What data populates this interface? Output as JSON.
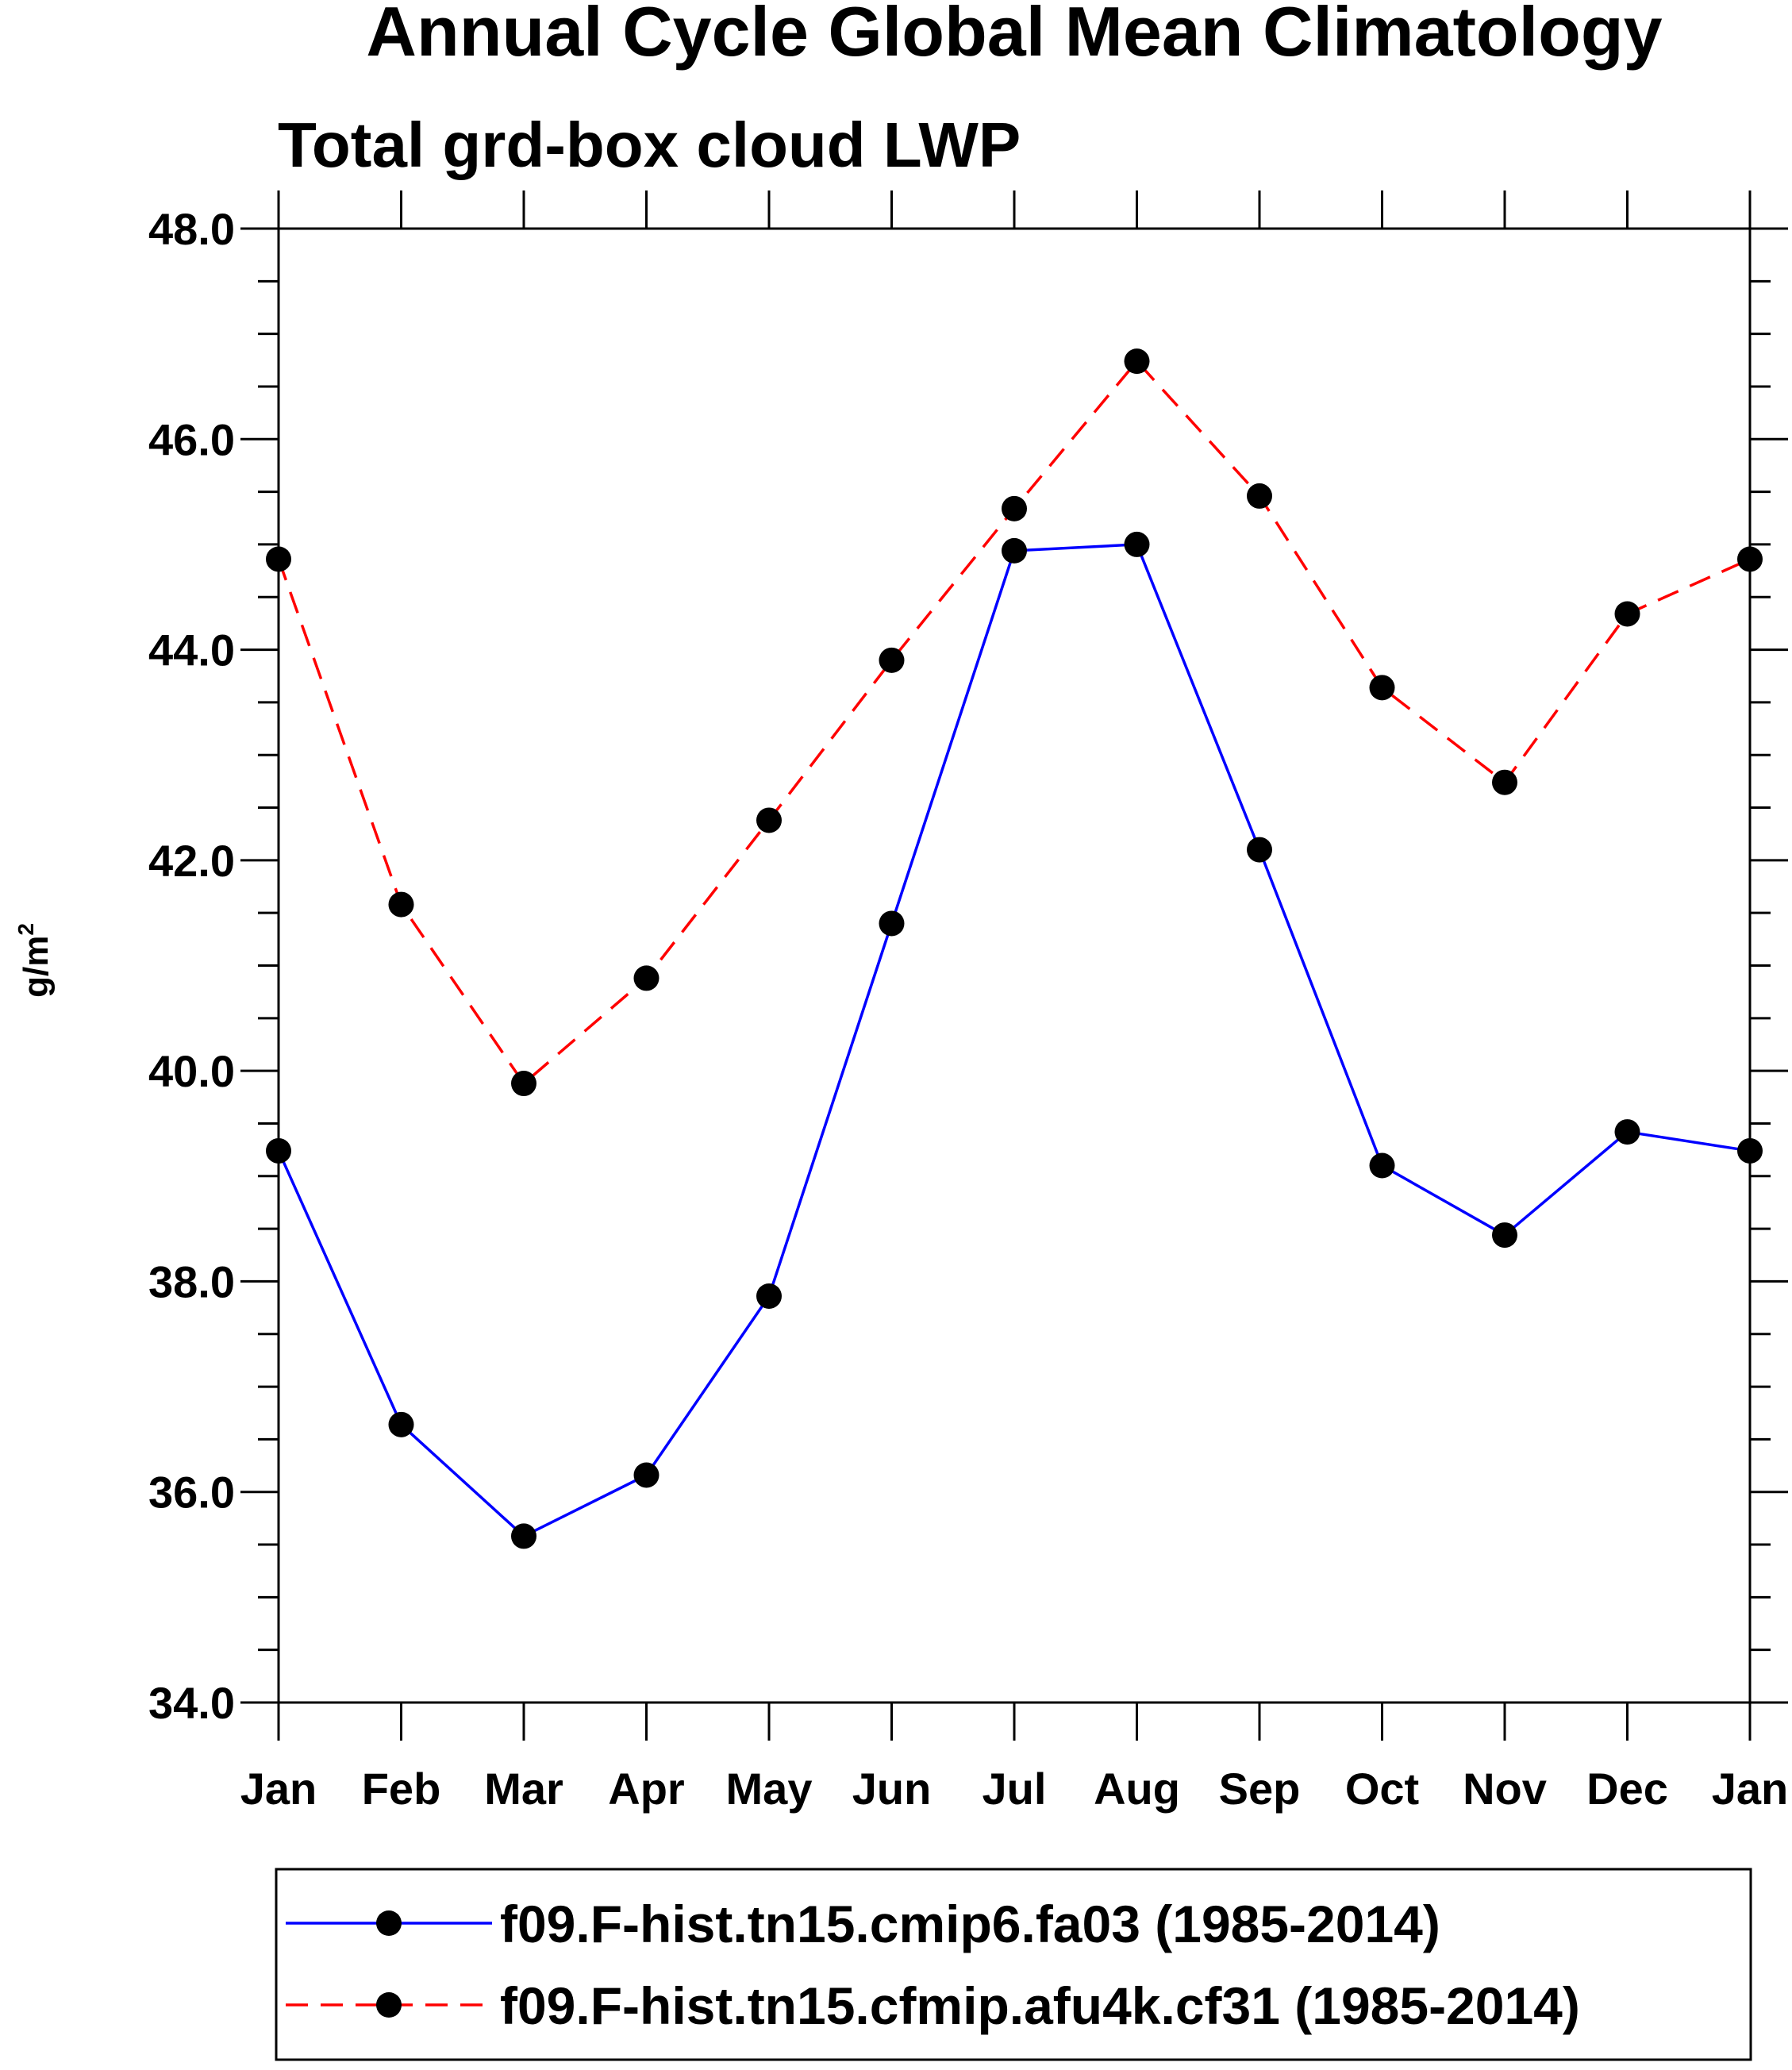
{
  "chart_data": {
    "type": "line",
    "title": "Annual Cycle Global Mean Climatology",
    "subtitle": "Total grd-box cloud LWP",
    "ylabel": "g/m",
    "ylabel_sup": "2",
    "xlabel": "",
    "categories": [
      "Jan",
      "Feb",
      "Mar",
      "Apr",
      "May",
      "Jun",
      "Jul",
      "Aug",
      "Sep",
      "Oct",
      "Nov",
      "Dec",
      "Jan"
    ],
    "ylim": [
      34.0,
      48.0
    ],
    "yticks": [
      "34.0",
      "36.0",
      "38.0",
      "40.0",
      "42.0",
      "44.0",
      "46.0",
      "48.0"
    ],
    "grid": false,
    "legend_position": "bottom",
    "series": [
      {
        "name": "f09.F-hist.tn15.cmip6.fa03 (1985-2014)",
        "color": "#0000ff",
        "style": "solid",
        "values": [
          39.24,
          36.64,
          35.58,
          36.16,
          37.86,
          41.4,
          44.94,
          45.0,
          42.1,
          39.1,
          38.44,
          39.42,
          39.24
        ]
      },
      {
        "name": "f09.F-hist.tn15.cfmip.afu4k.cf31 (1985-2014)",
        "color": "#ff0000",
        "style": "dashed",
        "values": [
          44.86,
          41.58,
          39.88,
          40.88,
          42.38,
          43.9,
          45.34,
          46.74,
          45.46,
          43.64,
          42.74,
          44.34,
          44.86
        ]
      }
    ]
  }
}
